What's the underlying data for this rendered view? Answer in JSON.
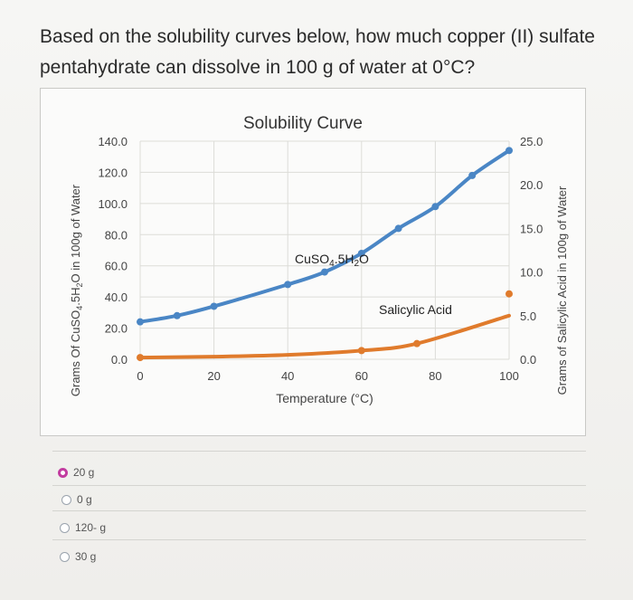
{
  "question": {
    "text": "Based on the solubility curves below, how much copper (II) sulfate pentahydrate can dissolve in 100 g of water at 0°C?"
  },
  "chart_data": {
    "type": "line",
    "title": "Solubility Curve",
    "xlabel": "Temperature (°C)",
    "ylabel_left": "Grams Of CuSO4.5H2O in 100g of Water",
    "ylabel_right": "Grams of Salicylic Acid in 100g of Water",
    "xlim": [
      0,
      100
    ],
    "ylim_left": [
      0,
      140
    ],
    "ylim_right": [
      0,
      25
    ],
    "x_ticks": [
      "0",
      "20",
      "40",
      "60",
      "80",
      "100"
    ],
    "y_left_ticks": [
      "0.0",
      "20.0",
      "40.0",
      "60.0",
      "80.0",
      "100.0",
      "120.0",
      "140.0"
    ],
    "y_right_ticks": [
      "0.0",
      "5.0",
      "10.0",
      "15.0",
      "20.0",
      "25.0"
    ],
    "grid": true,
    "series": [
      {
        "name": "CuSO4.5H2O",
        "axis": "left",
        "color": "#4a86c5",
        "points": [
          {
            "x": 0,
            "y": 24
          },
          {
            "x": 10,
            "y": 28
          },
          {
            "x": 20,
            "y": 34
          },
          {
            "x": 40,
            "y": 48
          },
          {
            "x": 50,
            "y": 56
          },
          {
            "x": 60,
            "y": 68
          },
          {
            "x": 70,
            "y": 84
          },
          {
            "x": 80,
            "y": 98
          },
          {
            "x": 90,
            "y": 118
          },
          {
            "x": 100,
            "y": 134
          }
        ]
      },
      {
        "name": "Salicylic Acid",
        "axis": "right",
        "color": "#e07b2c",
        "points": [
          {
            "x": 0,
            "y": 0.2
          },
          {
            "x": 20,
            "y": 0.3
          },
          {
            "x": 40,
            "y": 0.5
          },
          {
            "x": 60,
            "y": 1.0
          },
          {
            "x": 75,
            "y": 1.8
          },
          {
            "x": 100,
            "y": 5.0
          },
          {
            "x": 100,
            "y": 7.5
          }
        ]
      }
    ],
    "annotations": [
      {
        "text": "CuSO4.5H2O",
        "series": "CuSO4.5H2O"
      },
      {
        "text": "Salicylic Acid",
        "series": "Salicylic Acid"
      }
    ]
  },
  "options": [
    {
      "label": "20 g",
      "selected": true
    },
    {
      "label": "0 g",
      "selected": false
    },
    {
      "label": "120- g",
      "selected": false
    },
    {
      "label": "30 g",
      "selected": false
    }
  ]
}
